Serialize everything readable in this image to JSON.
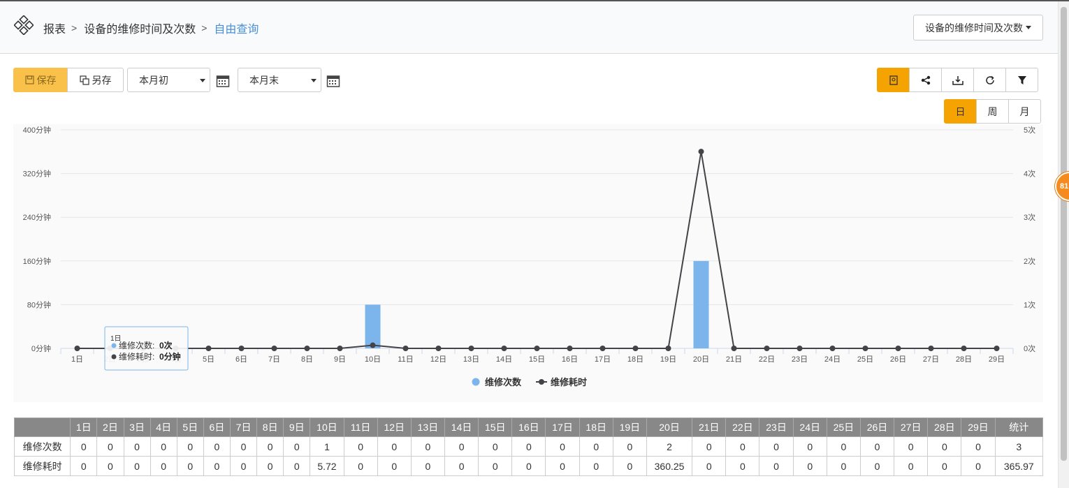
{
  "breadcrumb": {
    "root": "报表",
    "parent": "设备的维修时间及次数",
    "current": "自由查询"
  },
  "report_select": {
    "value": "设备的维修时间及次数"
  },
  "toolbar": {
    "save_label": "保存",
    "saveas_label": "另存",
    "start_date": "本月初",
    "end_date": "本月末"
  },
  "icons": [
    "report-icon",
    "share-icon",
    "download-icon",
    "refresh-icon",
    "filter-icon"
  ],
  "period_buttons": [
    "日",
    "周",
    "月"
  ],
  "badge": {
    "text": "81"
  },
  "colors": {
    "accent": "#f5a300",
    "bar": "#7cb5ec",
    "line": "#434348"
  },
  "chart_data": {
    "type": "bar+line",
    "categories": [
      "1日",
      "2日",
      "3日",
      "4日",
      "5日",
      "6日",
      "7日",
      "8日",
      "9日",
      "10日",
      "11日",
      "12日",
      "13日",
      "14日",
      "15日",
      "16日",
      "17日",
      "18日",
      "19日",
      "20日",
      "21日",
      "22日",
      "23日",
      "24日",
      "25日",
      "26日",
      "27日",
      "28日",
      "29日"
    ],
    "series": [
      {
        "name": "维修次数",
        "type": "bar",
        "axis": "right",
        "values": [
          0,
          0,
          0,
          0,
          0,
          0,
          0,
          0,
          0,
          1,
          0,
          0,
          0,
          0,
          0,
          0,
          0,
          0,
          0,
          2,
          0,
          0,
          0,
          0,
          0,
          0,
          0,
          0,
          0
        ]
      },
      {
        "name": "维修耗时",
        "type": "line",
        "axis": "left",
        "values": [
          0,
          0,
          0,
          0,
          0,
          0,
          0,
          0,
          0,
          5.72,
          0,
          0,
          0,
          0,
          0,
          0,
          0,
          0,
          0,
          360.25,
          0,
          0,
          0,
          0,
          0,
          0,
          0,
          0,
          0
        ]
      }
    ],
    "left_axis": {
      "ticks": [
        "0分钟",
        "80分钟",
        "160分钟",
        "240分钟",
        "320分钟",
        "400分钟"
      ],
      "ylim": [
        0,
        400
      ]
    },
    "right_axis": {
      "ticks": [
        "0次",
        "1次",
        "2次",
        "3次",
        "4次",
        "5次"
      ],
      "ylim": [
        0,
        5
      ]
    },
    "legend_position": "bottom-center",
    "tooltip": {
      "title": "1日",
      "rows": [
        {
          "label": "维修次数",
          "value": "0次"
        },
        {
          "label": "维修耗时",
          "value": "0分钟"
        }
      ]
    }
  },
  "table": {
    "headers": [
      "",
      "1日",
      "2日",
      "3日",
      "4日",
      "5日",
      "6日",
      "7日",
      "8日",
      "9日",
      "10日",
      "11日",
      "12日",
      "13日",
      "14日",
      "15日",
      "16日",
      "17日",
      "18日",
      "19日",
      "20日",
      "21日",
      "22日",
      "23日",
      "24日",
      "25日",
      "26日",
      "27日",
      "28日",
      "29日",
      "统计"
    ],
    "rows": [
      [
        "维修次数",
        "0",
        "0",
        "0",
        "0",
        "0",
        "0",
        "0",
        "0",
        "0",
        "1",
        "0",
        "0",
        "0",
        "0",
        "0",
        "0",
        "0",
        "0",
        "0",
        "2",
        "0",
        "0",
        "0",
        "0",
        "0",
        "0",
        "0",
        "0",
        "0",
        "3"
      ],
      [
        "维修耗时",
        "0",
        "0",
        "0",
        "0",
        "0",
        "0",
        "0",
        "0",
        "0",
        "5.72",
        "0",
        "0",
        "0",
        "0",
        "0",
        "0",
        "0",
        "0",
        "0",
        "360.25",
        "0",
        "0",
        "0",
        "0",
        "0",
        "0",
        "0",
        "0",
        "0",
        "365.97"
      ]
    ]
  }
}
